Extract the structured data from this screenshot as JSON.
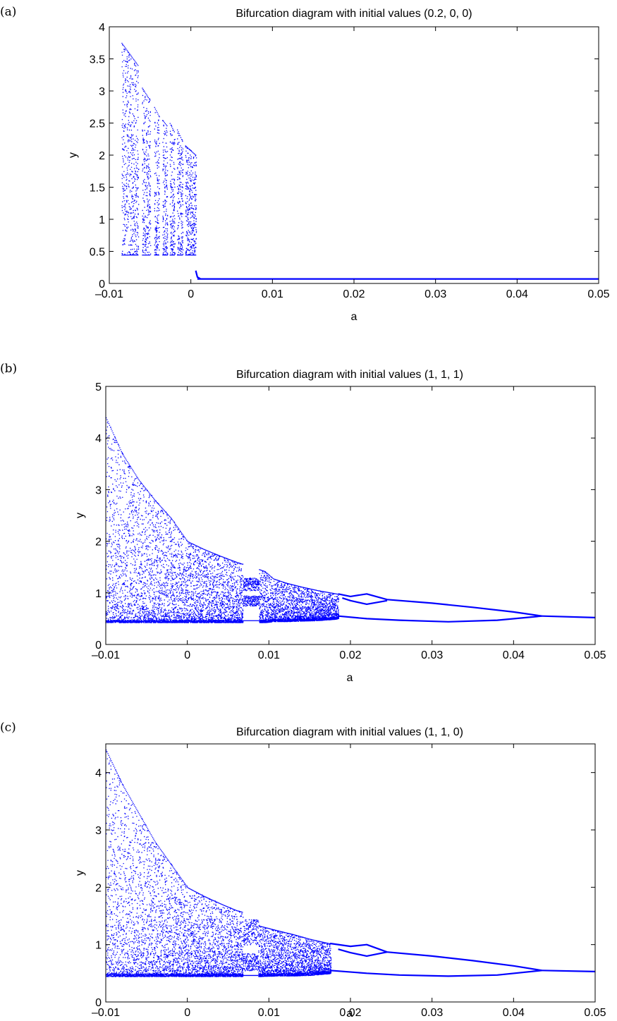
{
  "chart_data": [
    {
      "type": "scatter",
      "panel_label": "(a)",
      "title": "Bifurcation diagram with initial values (0.2, 0, 0)",
      "xlabel": "a",
      "ylabel": "y",
      "xlim": [
        -0.01,
        0.05
      ],
      "ylim": [
        0,
        4
      ],
      "xticks": [
        -0.01,
        0,
        0.01,
        0.02,
        0.03,
        0.04,
        0.05
      ],
      "xtick_labels": [
        "–0.01",
        "0",
        "0.01",
        "0.02",
        "0.03",
        "0.04",
        "0.05"
      ],
      "yticks": [
        0,
        0.5,
        1,
        1.5,
        2,
        2.5,
        3,
        3.5,
        4
      ],
      "ytick_labels": [
        "0",
        "0.5",
        "1",
        "1.5",
        "2",
        "2.5",
        "3",
        "3.5",
        "4"
      ],
      "grid": false,
      "color": "#0000ff",
      "chaotic_bands": [
        {
          "a_start": -0.0085,
          "a_end": -0.0065,
          "y_min": 0.45,
          "y_max_start": 3.75,
          "y_max_end": 3.4
        },
        {
          "a_start": -0.006,
          "a_end": -0.005,
          "y_min": 0.45,
          "y_max_start": 3.05,
          "y_max_end": 2.85
        },
        {
          "a_start": -0.0045,
          "a_end": -0.0039,
          "y_min": 0.45,
          "y_max_start": 2.75,
          "y_max_end": 2.6
        },
        {
          "a_start": -0.0035,
          "a_end": -0.0029,
          "y_min": 0.45,
          "y_max_start": 2.55,
          "y_max_end": 2.45
        },
        {
          "a_start": -0.0026,
          "a_end": -0.002,
          "y_min": 0.45,
          "y_max_start": 2.5,
          "y_max_end": 2.35
        },
        {
          "a_start": -0.0017,
          "a_end": -0.001,
          "y_min": 0.45,
          "y_max_start": 2.4,
          "y_max_end": 2.2
        },
        {
          "a_start": -0.0007,
          "a_end": 0.0006,
          "y_min": 0.45,
          "y_max_start": 2.15,
          "y_max_end": 2.0
        }
      ],
      "branches": [
        {
          "name": "transient",
          "x": [
            0.0006,
            0.0008,
            0.0012
          ],
          "y": [
            0.2,
            0.1,
            0.07
          ]
        },
        {
          "name": "fixed",
          "x": [
            0.0008,
            0.05
          ],
          "y": [
            0.07,
            0.07
          ]
        }
      ]
    },
    {
      "type": "scatter",
      "panel_label": "(b)",
      "title": "Bifurcation diagram with initial values (1, 1, 1)",
      "xlabel": "a",
      "ylabel": "y",
      "xlim": [
        -0.01,
        0.05
      ],
      "ylim": [
        0,
        5
      ],
      "xticks": [
        -0.01,
        0,
        0.01,
        0.02,
        0.03,
        0.04,
        0.05
      ],
      "xtick_labels": [
        "–0.01",
        "0",
        "0.01",
        "0.02",
        "0.03",
        "0.04",
        "0.05"
      ],
      "yticks": [
        0,
        1,
        2,
        3,
        4,
        5
      ],
      "ytick_labels": [
        "0",
        "1",
        "2",
        "3",
        "4",
        "5"
      ],
      "grid": false,
      "color": "#0000ff",
      "envelope": {
        "a": [
          -0.01,
          -0.008,
          -0.006,
          -0.004,
          -0.002,
          0,
          0.002,
          0.004,
          0.006,
          0.008,
          0.0095,
          0.0105,
          0.012,
          0.014,
          0.016,
          0.0185
        ],
        "y_top": [
          4.4,
          3.7,
          3.2,
          2.8,
          2.45,
          2.0,
          1.85,
          1.72,
          1.6,
          1.5,
          1.42,
          1.28,
          1.2,
          1.12,
          1.05,
          0.98
        ],
        "y_bottom": [
          0.43,
          0.43,
          0.43,
          0.43,
          0.43,
          0.43,
          0.43,
          0.43,
          0.43,
          0.43,
          0.43,
          0.45,
          0.45,
          0.46,
          0.47,
          0.5
        ]
      },
      "windows": [
        {
          "a_start": 0.0068,
          "a_end": 0.0087,
          "bands": [
            [
              0.75,
              0.95
            ],
            [
              1.05,
              1.3
            ]
          ]
        }
      ],
      "branches": [
        {
          "name": "upper-outer",
          "x": [
            0.0185,
            0.02,
            0.022,
            0.0245,
            0.03,
            0.035,
            0.04,
            0.0435
          ],
          "y": [
            0.98,
            0.93,
            0.98,
            0.87,
            0.8,
            0.72,
            0.63,
            0.55
          ]
        },
        {
          "name": "upper-inner",
          "x": [
            0.019,
            0.02,
            0.022,
            0.0245
          ],
          "y": [
            0.9,
            0.85,
            0.78,
            0.85
          ]
        },
        {
          "name": "lower",
          "x": [
            0.0185,
            0.022,
            0.026,
            0.032,
            0.038,
            0.0435
          ],
          "y": [
            0.55,
            0.5,
            0.47,
            0.44,
            0.47,
            0.55
          ]
        },
        {
          "name": "period-1",
          "x": [
            0.0435,
            0.05
          ],
          "y": [
            0.55,
            0.52
          ]
        }
      ]
    },
    {
      "type": "scatter",
      "panel_label": "(c)",
      "title": "Bifurcation diagram with initial values (1, 1, 0)",
      "xlabel": "a",
      "ylabel": "y",
      "xlim": [
        -0.01,
        0.05
      ],
      "ylim": [
        0,
        4.5
      ],
      "xticks": [
        -0.01,
        0,
        0.01,
        0.02,
        0.03,
        0.04,
        0.05
      ],
      "xtick_labels": [
        "–0.01",
        "0",
        "0.01",
        "0.02",
        "0.03",
        "0.04",
        "0.05"
      ],
      "yticks": [
        0,
        1,
        2,
        3,
        4
      ],
      "ytick_labels": [
        "0",
        "1",
        "2",
        "3",
        "4"
      ],
      "grid": false,
      "color": "#0000ff",
      "envelope": {
        "a": [
          -0.01,
          -0.008,
          -0.006,
          -0.004,
          -0.002,
          0,
          0.002,
          0.004,
          0.006,
          0.0085,
          0.0088,
          0.011,
          0.013,
          0.015,
          0.0175
        ],
        "y_top": [
          4.4,
          3.8,
          3.3,
          2.8,
          2.4,
          2.0,
          1.85,
          1.72,
          1.6,
          1.5,
          1.33,
          1.25,
          1.18,
          1.1,
          1.02
        ],
        "y_bottom": [
          0.45,
          0.45,
          0.45,
          0.45,
          0.45,
          0.45,
          0.45,
          0.45,
          0.45,
          0.45,
          0.45,
          0.46,
          0.46,
          0.47,
          0.5
        ]
      },
      "windows": [
        {
          "a_start": 0.0068,
          "a_end": 0.0086,
          "bands": [
            [
              0.55,
              0.85
            ],
            [
              1.0,
              1.45
            ]
          ]
        }
      ],
      "branches": [
        {
          "name": "upper-outer",
          "x": [
            0.0175,
            0.02,
            0.022,
            0.0245,
            0.03,
            0.035,
            0.04,
            0.0435
          ],
          "y": [
            1.02,
            0.97,
            1.0,
            0.87,
            0.8,
            0.72,
            0.63,
            0.55
          ]
        },
        {
          "name": "upper-inner",
          "x": [
            0.0185,
            0.02,
            0.022,
            0.0245
          ],
          "y": [
            0.92,
            0.86,
            0.8,
            0.87
          ]
        },
        {
          "name": "lower",
          "x": [
            0.0175,
            0.022,
            0.026,
            0.032,
            0.038,
            0.0435
          ],
          "y": [
            0.55,
            0.5,
            0.47,
            0.45,
            0.47,
            0.55
          ]
        },
        {
          "name": "period-1",
          "x": [
            0.0435,
            0.05
          ],
          "y": [
            0.55,
            0.53
          ]
        }
      ]
    }
  ]
}
